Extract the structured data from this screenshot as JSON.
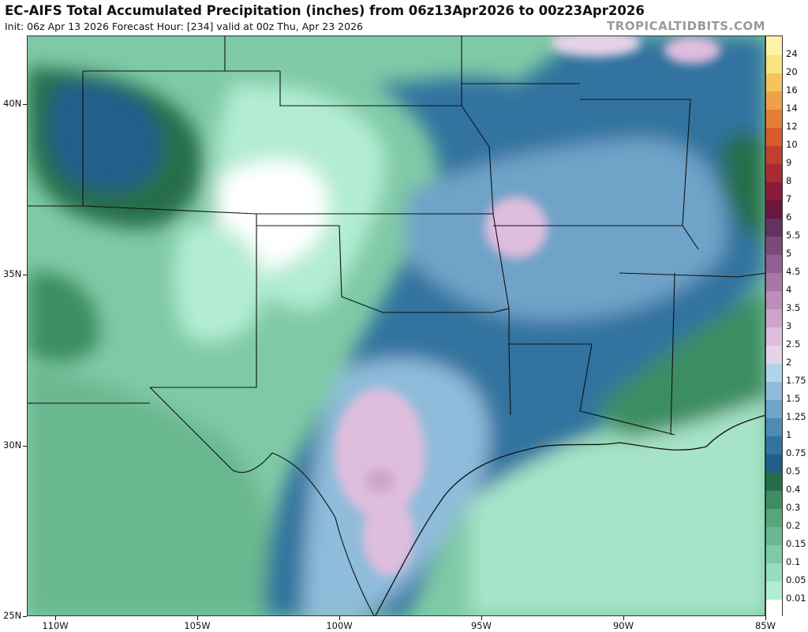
{
  "header": {
    "title": "EC-AIFS Total Accumulated Precipitation (inches) from 06z13Apr2026 to 00z23Apr2026",
    "subtitle": "Init: 06z Apr 13 2026   Forecast Hour: [234]   valid at 00z Thu, Apr 23 2026",
    "watermark": "TROPICALTIDBITS.COM"
  },
  "map": {
    "lon_range": [
      -111,
      -85
    ],
    "lat_range": [
      25,
      42
    ],
    "lat_labels": [
      {
        "lat": 40,
        "label": "40N"
      },
      {
        "lat": 35,
        "label": "35N"
      },
      {
        "lat": 30,
        "label": "30N"
      },
      {
        "lat": 25,
        "label": "25N"
      }
    ],
    "lon_labels": [
      {
        "lon": -110,
        "label": "110W"
      },
      {
        "lon": -105,
        "label": "105W"
      },
      {
        "lon": -100,
        "label": "100W"
      },
      {
        "lon": -95,
        "label": "95W"
      },
      {
        "lon": -90,
        "label": "90W"
      },
      {
        "lon": -85,
        "label": "85W"
      }
    ],
    "precip_features": [
      {
        "lon": -98.6,
        "lat": 29.8,
        "rx": 1.6,
        "ry": 1.9,
        "value": 2.5
      },
      {
        "lon": -98.3,
        "lat": 27.4,
        "rx": 0.9,
        "ry": 1.2,
        "value": 2.5
      },
      {
        "lon": -98.6,
        "lat": 29.0,
        "rx": 0.5,
        "ry": 0.35,
        "value": 3
      },
      {
        "lon": -93.8,
        "lat": 36.4,
        "rx": 1.1,
        "ry": 0.9,
        "value": 2.5
      },
      {
        "lon": -87.6,
        "lat": 41.6,
        "rx": 1.0,
        "ry": 0.4,
        "value": 2.5
      },
      {
        "lon": -91.0,
        "lat": 41.8,
        "rx": 1.6,
        "ry": 0.4,
        "value": 2
      }
    ]
  },
  "colorbar": {
    "levels": [
      "0.01",
      "0.05",
      "0.1",
      "0.15",
      "0.2",
      "0.3",
      "0.4",
      "0.5",
      "0.75",
      "1",
      "1.25",
      "1.5",
      "1.75",
      "2",
      "2.5",
      "3",
      "3.5",
      "4",
      "4.5",
      "5",
      "5.5",
      "6",
      "7",
      "8",
      "9",
      "10",
      "12",
      "14",
      "16",
      "20",
      "24"
    ],
    "colors": [
      "#ffffff",
      "#b2ecd3",
      "#98dcbe",
      "#7fcaa6",
      "#6bb890",
      "#57a57b",
      "#3e8d62",
      "#256e48",
      "#215f8a",
      "#33739f",
      "#4f8ab3",
      "#6fa3c8",
      "#8fbcda",
      "#b2d4ea",
      "#e5d3e9",
      "#dfbddd",
      "#cea4cb",
      "#bd8cbb",
      "#a977a7",
      "#925e91",
      "#7a4a7b",
      "#62335f",
      "#6b1540",
      "#8a1c3a",
      "#a82b34",
      "#c0402d",
      "#d65c2c",
      "#e67e36",
      "#f0a046",
      "#f7c45b",
      "#fbe37d",
      "#fdf3a8"
    ]
  }
}
